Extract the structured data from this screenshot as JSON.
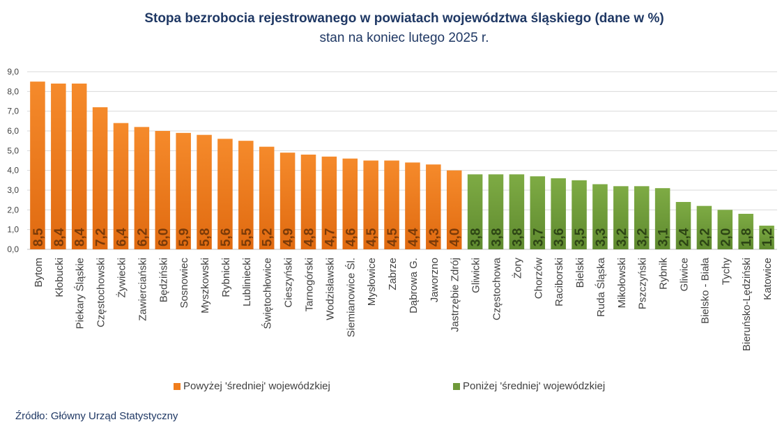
{
  "chart_data": {
    "type": "bar",
    "title": "Stopa bezrobocia rejestrowanego w powiatach województwa śląskiego (dane w %)",
    "subtitle": "stan na koniec lutego 2025 r.",
    "categories": [
      "Bytom",
      "Kłobucki",
      "Piekary Śląskie",
      "Częstochowski",
      "Żywiecki",
      "Zawierciański",
      "Będziński",
      "Sosnowiec",
      "Myszkowski",
      "Rybnicki",
      "Lubliniecki",
      "Świętochłowice",
      "Cieszyński",
      "Tarnogórski",
      "Wodzisławski",
      "Siemianowice Śl.",
      "Mysłowice",
      "Zabrze",
      "Dąbrowa G.",
      "Jaworzno",
      "Jastrzębie Zdrój",
      "Gliwicki",
      "Częstochowa",
      "Żory",
      "Chorzów",
      "Raciborski",
      "Bielski",
      "Ruda  Śląska",
      "Mikołowski",
      "Pszczyński",
      "Rybnik",
      "Gliwice",
      "Bielsko - Biała",
      "Tychy",
      "Bieruńsko-Lędziński",
      "Katowice"
    ],
    "values": [
      8.5,
      8.4,
      8.4,
      7.2,
      6.4,
      6.2,
      6.0,
      5.9,
      5.8,
      5.6,
      5.5,
      5.2,
      4.9,
      4.8,
      4.7,
      4.6,
      4.5,
      4.5,
      4.4,
      4.3,
      4.0,
      3.8,
      3.8,
      3.8,
      3.7,
      3.6,
      3.5,
      3.3,
      3.2,
      3.2,
      3.1,
      2.4,
      2.2,
      2.0,
      1.8,
      1.2
    ],
    "data_labels": [
      "8,5",
      "8,4",
      "8,4",
      "7,2",
      "6,4",
      "6,2",
      "6,0",
      "5,9",
      "5,8",
      "5,6",
      "5,5",
      "5,2",
      "4,9",
      "4,8",
      "4,7",
      "4,6",
      "4,5",
      "4,5",
      "4,4",
      "4,3",
      "4,0",
      "3,8",
      "3,8",
      "3,8",
      "3,7",
      "3,6",
      "3,5",
      "3,3",
      "3,2",
      "3,2",
      "3,1",
      "2,4",
      "2,2",
      "2,0",
      "1,8",
      "1,2"
    ],
    "groups": [
      "above",
      "above",
      "above",
      "above",
      "above",
      "above",
      "above",
      "above",
      "above",
      "above",
      "above",
      "above",
      "above",
      "above",
      "above",
      "above",
      "above",
      "above",
      "above",
      "above",
      "above",
      "below",
      "below",
      "below",
      "below",
      "below",
      "below",
      "below",
      "below",
      "below",
      "below",
      "below",
      "below",
      "below",
      "below",
      "below"
    ],
    "ylim": [
      0,
      9
    ],
    "ytick_values": [
      0,
      1,
      2,
      3,
      4,
      5,
      6,
      7,
      8,
      9
    ],
    "ytick_labels": [
      "0,0",
      "1,0",
      "2,0",
      "3,0",
      "4,0",
      "5,0",
      "6,0",
      "7,0",
      "8,0",
      "9,0"
    ],
    "grid": true,
    "legend_position": "bottom",
    "series": [
      {
        "name": "Powyżej 'średniej' wojewódzkiej",
        "group": "above",
        "color": "#f07d1c",
        "label_color": "#7a3a08"
      },
      {
        "name": "Poniżej 'średniej' wojewódzkiej",
        "group": "below",
        "color": "#6f9a3a",
        "label_color": "#2c4414"
      }
    ]
  },
  "source": "Źródło: Główny Urząd Statystyczny"
}
